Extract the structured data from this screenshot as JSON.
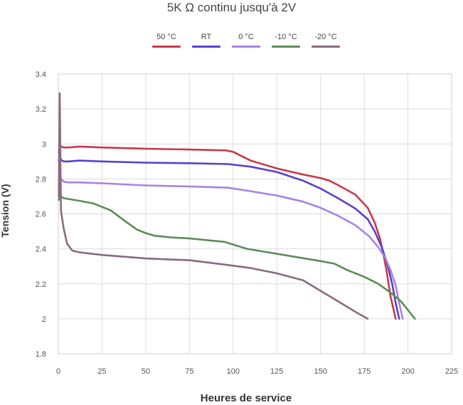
{
  "chart_data": {
    "type": "line",
    "title": "5K Ω continu jusqu'à 2V",
    "xlabel": "Heures de service",
    "ylabel": "Tension (V)",
    "xlim": [
      0,
      225
    ],
    "ylim": [
      1.8,
      3.4
    ],
    "xticks": [
      "0",
      "25",
      "50",
      "75",
      "100",
      "125",
      "150",
      "175",
      "200",
      "225"
    ],
    "yticks": [
      "1.8",
      "2",
      "2.2",
      "2.4",
      "2.6",
      "2.8",
      "3",
      "3.2",
      "3.4"
    ],
    "grid": true,
    "legend_position": "top",
    "series": [
      {
        "name": "50 °C",
        "color": "#c8394b",
        "x": [
          0.3,
          0.8,
          1.5,
          3,
          6,
          12,
          25,
          50,
          75,
          96,
          100,
          110,
          125,
          140,
          150,
          155,
          160,
          170,
          177,
          181,
          184,
          186,
          188,
          190,
          193
        ],
        "y": [
          2.95,
          3.0,
          2.985,
          2.98,
          2.98,
          2.985,
          2.98,
          2.973,
          2.968,
          2.963,
          2.955,
          2.905,
          2.86,
          2.825,
          2.805,
          2.79,
          2.765,
          2.71,
          2.635,
          2.55,
          2.46,
          2.37,
          2.26,
          2.13,
          2.0
        ]
      },
      {
        "name": "RT",
        "color": "#5a3fcf",
        "x": [
          0.3,
          0.8,
          1.5,
          3,
          6,
          12,
          25,
          50,
          75,
          97,
          110,
          125,
          140,
          150,
          160,
          170,
          177,
          181,
          185,
          188,
          191,
          193,
          195
        ],
        "y": [
          2.9,
          2.94,
          2.91,
          2.9,
          2.9,
          2.905,
          2.9,
          2.893,
          2.89,
          2.885,
          2.87,
          2.84,
          2.79,
          2.745,
          2.69,
          2.63,
          2.57,
          2.5,
          2.41,
          2.32,
          2.2,
          2.09,
          2.0
        ]
      },
      {
        "name": "0 °C",
        "color": "#a683e3",
        "x": [
          0.3,
          0.8,
          1.5,
          3,
          6,
          12,
          25,
          50,
          75,
          97,
          110,
          125,
          140,
          150,
          160,
          170,
          178,
          183,
          187,
          190,
          193,
          195,
          197
        ],
        "y": [
          2.78,
          2.83,
          2.8,
          2.785,
          2.78,
          2.78,
          2.775,
          2.763,
          2.757,
          2.75,
          2.73,
          2.705,
          2.67,
          2.635,
          2.59,
          2.535,
          2.47,
          2.41,
          2.35,
          2.28,
          2.19,
          2.09,
          2.0
        ]
      },
      {
        "name": "-10 °C",
        "color": "#5c8c58",
        "x": [
          0.3,
          0.8,
          1.5,
          3,
          6,
          12,
          20,
          30,
          38,
          45,
          50,
          55,
          65,
          75,
          95,
          103,
          108,
          120,
          135,
          150,
          158,
          165,
          175,
          183,
          190,
          196,
          200,
          204
        ],
        "y": [
          2.68,
          2.73,
          2.7,
          2.69,
          2.685,
          2.675,
          2.66,
          2.62,
          2.56,
          2.51,
          2.49,
          2.475,
          2.465,
          2.46,
          2.44,
          2.415,
          2.4,
          2.38,
          2.355,
          2.33,
          2.315,
          2.28,
          2.24,
          2.2,
          2.15,
          2.1,
          2.05,
          2.0
        ]
      },
      {
        "name": "-20 °C",
        "color": "#8a6a7e",
        "x": [
          0.3,
          0.8,
          1.5,
          3,
          5,
          8,
          12,
          25,
          50,
          75,
          95,
          110,
          125,
          140,
          150,
          160,
          170,
          177
        ],
        "y": [
          2.7,
          3.29,
          2.62,
          2.52,
          2.43,
          2.39,
          2.38,
          2.365,
          2.345,
          2.335,
          2.31,
          2.29,
          2.26,
          2.22,
          2.16,
          2.1,
          2.04,
          2.0
        ]
      }
    ]
  }
}
